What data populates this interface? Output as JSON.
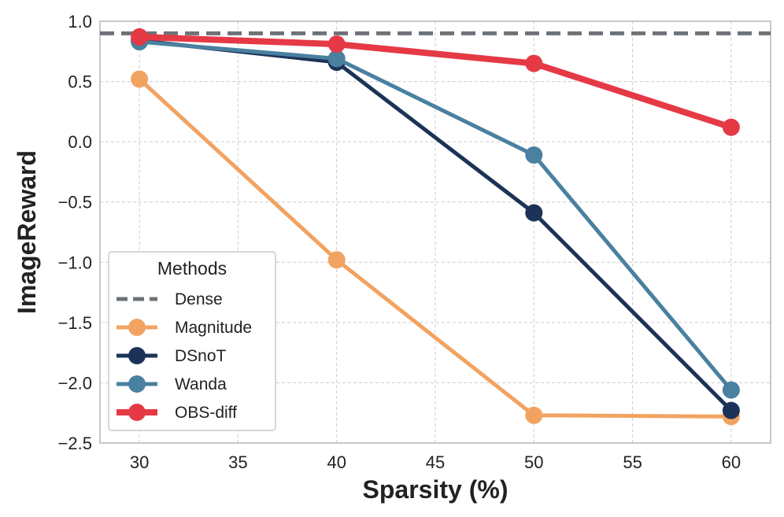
{
  "chart_data": {
    "type": "line",
    "title": "",
    "xlabel": "Sparsity (%)",
    "ylabel": "ImageReward",
    "x": [
      30,
      40,
      50,
      60
    ],
    "xlim": [
      28,
      62
    ],
    "ylim": [
      -2.5,
      1.0
    ],
    "xticks": [
      30,
      35,
      40,
      45,
      50,
      55,
      60
    ],
    "xtick_labels": [
      "30",
      "35",
      "40",
      "45",
      "50",
      "55",
      "60"
    ],
    "yticks": [
      1.0,
      0.5,
      0.0,
      -0.5,
      -1.0,
      -1.5,
      -2.0,
      -2.5
    ],
    "ytick_labels": [
      "1.0",
      "0.5",
      "0.0",
      "−0.5",
      "−1.0",
      "−1.5",
      "−2.0",
      "−2.5"
    ],
    "grid": true,
    "legend_title": "Methods",
    "legend_position": "lower-left",
    "reference_line": {
      "name": "Dense",
      "value": 0.9,
      "color": "#6e7379"
    },
    "series": [
      {
        "name": "Magnitude",
        "values": [
          0.52,
          -0.98,
          -2.27,
          -2.28
        ],
        "color": "#f2a361"
      },
      {
        "name": "DSnoT",
        "values": [
          0.84,
          0.66,
          -0.59,
          -2.23
        ],
        "color": "#1c3357"
      },
      {
        "name": "Wanda",
        "values": [
          0.83,
          0.69,
          -0.11,
          -2.06
        ],
        "color": "#4a80a0"
      },
      {
        "name": "OBS-diff",
        "values": [
          0.87,
          0.81,
          0.65,
          0.12
        ],
        "color": "#e63946"
      }
    ]
  }
}
